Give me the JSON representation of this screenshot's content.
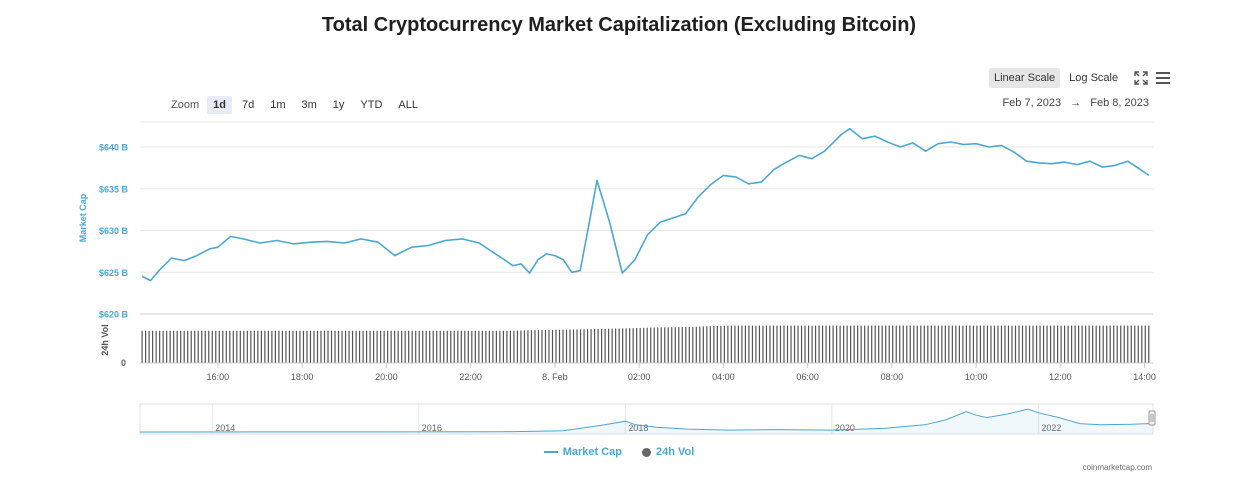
{
  "title": "Total Cryptocurrency Market Capitalization (Excluding Bitcoin)",
  "zoom": {
    "label": "Zoom",
    "buttons": [
      "1d",
      "7d",
      "1m",
      "3m",
      "1y",
      "YTD",
      "ALL"
    ],
    "active": "1d"
  },
  "scale": {
    "linear": "Linear Scale",
    "log": "Log Scale",
    "active": "linear"
  },
  "icons": {
    "fullscreen": "fullscreen-icon",
    "menu": "hamburger-menu-icon"
  },
  "range": {
    "from": "Feb 7, 2023",
    "arrow": "→",
    "to": "Feb 8, 2023"
  },
  "legend": {
    "market_cap": "Market Cap",
    "volume": "24h Vol"
  },
  "credit": "coinmarketcap.com",
  "colors": {
    "line": "#4aa7d4",
    "bars": "#555555",
    "axis_label": "#4aa7d4",
    "grid": "#e6e6e6"
  },
  "chart_data": {
    "type": "line",
    "ylabel": "Market Cap",
    "vol_label": "24h Vol",
    "y_ticks": [
      "$625 B",
      "$630 B",
      "$635 B",
      "$640 B"
    ],
    "y_tick_values": [
      625,
      630,
      635,
      640
    ],
    "ylim": [
      620,
      643
    ],
    "vol_tick": "$620 B",
    "vol_zero": "0",
    "x_ticks": [
      "16:00",
      "18:00",
      "20:00",
      "22:00",
      "8. Feb",
      "02:00",
      "04:00",
      "06:00",
      "08:00",
      "10:00",
      "12:00",
      "14:00"
    ],
    "x_tick_hours": [
      16,
      18,
      20,
      22,
      24,
      26,
      28,
      30,
      32,
      34,
      36,
      38
    ],
    "xlim_hours": [
      14.15,
      38.2
    ],
    "series": [
      {
        "name": "Market Cap",
        "x_hours": [
          14.2,
          14.4,
          14.6,
          14.9,
          15.2,
          15.5,
          15.8,
          16.0,
          16.3,
          16.6,
          17.0,
          17.4,
          17.8,
          18.2,
          18.6,
          19.0,
          19.4,
          19.8,
          20.2,
          20.6,
          21.0,
          21.4,
          21.8,
          22.2,
          22.5,
          22.8,
          23.0,
          23.2,
          23.4,
          23.6,
          23.8,
          24.0,
          24.2,
          24.4,
          24.6,
          24.8,
          25.0,
          25.3,
          25.6,
          25.9,
          26.2,
          26.5,
          26.8,
          27.1,
          27.4,
          27.7,
          28.0,
          28.3,
          28.6,
          28.9,
          29.2,
          29.5,
          29.8,
          30.1,
          30.4,
          30.6,
          30.8,
          31.0,
          31.3,
          31.6,
          31.9,
          32.2,
          32.5,
          32.8,
          33.1,
          33.4,
          33.7,
          34.0,
          34.3,
          34.6,
          34.9,
          35.2,
          35.5,
          35.8,
          36.1,
          36.4,
          36.7,
          37.0,
          37.3,
          37.6,
          37.9,
          38.1
        ],
        "values": [
          624.5,
          624.0,
          625.2,
          626.7,
          626.4,
          627.0,
          627.8,
          628.0,
          629.3,
          629.0,
          628.5,
          628.8,
          628.4,
          628.6,
          628.7,
          628.5,
          629.0,
          628.6,
          627.0,
          628.0,
          628.2,
          628.8,
          629.0,
          628.5,
          627.5,
          626.5,
          625.8,
          626.0,
          624.9,
          626.5,
          627.2,
          627.0,
          626.5,
          625.0,
          625.2,
          630.5,
          636.0,
          631.0,
          624.9,
          626.5,
          629.5,
          631.0,
          631.5,
          632.0,
          634.0,
          635.5,
          636.6,
          636.4,
          635.6,
          635.8,
          637.3,
          638.2,
          639.0,
          638.6,
          639.5,
          640.5,
          641.5,
          642.2,
          641.0,
          641.3,
          640.6,
          640.0,
          640.5,
          639.5,
          640.4,
          640.6,
          640.3,
          640.4,
          640.0,
          640.2,
          639.4,
          638.3,
          638.1,
          638.0,
          638.2,
          637.9,
          638.3,
          637.6,
          637.8,
          638.3,
          637.3,
          636.6
        ]
      },
      {
        "name": "24h Vol",
        "x_hours": [
          14.2,
          22.9,
          23.4,
          25.0,
          26.2,
          27.2,
          28.1,
          38.1
        ],
        "values": [
          0.75,
          0.75,
          0.76,
          0.79,
          0.82,
          0.84,
          0.87,
          0.87
        ]
      }
    ],
    "navigator": {
      "x_ticks": [
        "2014",
        "2016",
        "2018",
        "2020",
        "2022"
      ],
      "x_tick_years": [
        2014,
        2016,
        2018,
        2020,
        2022
      ],
      "xlim_years": [
        2013.3,
        2023.11
      ],
      "x_years": [
        2013.3,
        2016.8,
        2017.4,
        2017.8,
        2018.0,
        2018.1,
        2018.3,
        2018.6,
        2019.0,
        2019.5,
        2020.0,
        2020.5,
        2020.9,
        2021.1,
        2021.3,
        2021.4,
        2021.5,
        2021.7,
        2021.9,
        2022.0,
        2022.2,
        2022.4,
        2022.6,
        2022.9,
        2023.11
      ],
      "values": [
        0.0,
        0.01,
        0.05,
        0.3,
        0.45,
        0.3,
        0.2,
        0.12,
        0.08,
        0.1,
        0.08,
        0.15,
        0.3,
        0.5,
        0.85,
        0.7,
        0.6,
        0.75,
        0.95,
        0.8,
        0.6,
        0.35,
        0.3,
        0.32,
        0.36
      ]
    }
  }
}
